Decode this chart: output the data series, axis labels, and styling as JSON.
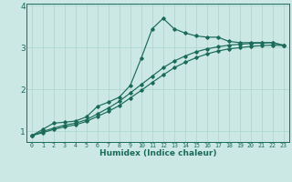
{
  "xlabel": "Humidex (Indice chaleur)",
  "bg_color": "#cce8e5",
  "line_color": "#1a6b5a",
  "grid_color": "#aad4ce",
  "xlim": [
    -0.5,
    23.5
  ],
  "ylim": [
    0.75,
    4.05
  ],
  "xticks": [
    0,
    1,
    2,
    3,
    4,
    5,
    6,
    7,
    8,
    9,
    10,
    11,
    12,
    13,
    14,
    15,
    16,
    17,
    18,
    19,
    20,
    21,
    22,
    23
  ],
  "yticks": [
    1,
    2,
    3,
    4
  ],
  "line1_x": [
    0,
    1,
    2,
    3,
    4,
    5,
    6,
    7,
    8,
    9,
    10,
    11,
    12,
    13,
    14,
    15,
    16,
    17,
    18,
    19,
    20,
    21,
    22,
    23
  ],
  "line1_y": [
    0.9,
    1.05,
    1.2,
    1.22,
    1.25,
    1.35,
    1.6,
    1.7,
    1.82,
    2.1,
    2.75,
    3.45,
    3.7,
    3.45,
    3.35,
    3.28,
    3.25,
    3.25,
    3.15,
    3.12,
    3.12,
    3.12,
    3.12,
    3.05
  ],
  "line2_x": [
    0,
    1,
    2,
    3,
    4,
    5,
    6,
    7,
    8,
    9,
    10,
    11,
    12,
    13,
    14,
    15,
    16,
    17,
    18,
    19,
    20,
    21,
    22,
    23
  ],
  "line2_y": [
    0.9,
    1.0,
    1.08,
    1.15,
    1.2,
    1.28,
    1.42,
    1.56,
    1.72,
    1.92,
    2.12,
    2.32,
    2.52,
    2.68,
    2.8,
    2.9,
    2.97,
    3.02,
    3.06,
    3.08,
    3.1,
    3.11,
    3.12,
    3.06
  ],
  "line3_x": [
    0,
    1,
    2,
    3,
    4,
    5,
    6,
    7,
    8,
    9,
    10,
    11,
    12,
    13,
    14,
    15,
    16,
    17,
    18,
    19,
    20,
    21,
    22,
    23
  ],
  "line3_y": [
    0.9,
    0.97,
    1.05,
    1.11,
    1.16,
    1.24,
    1.36,
    1.48,
    1.62,
    1.8,
    1.98,
    2.17,
    2.35,
    2.52,
    2.65,
    2.76,
    2.85,
    2.92,
    2.97,
    3.0,
    3.03,
    3.05,
    3.06,
    3.05
  ]
}
